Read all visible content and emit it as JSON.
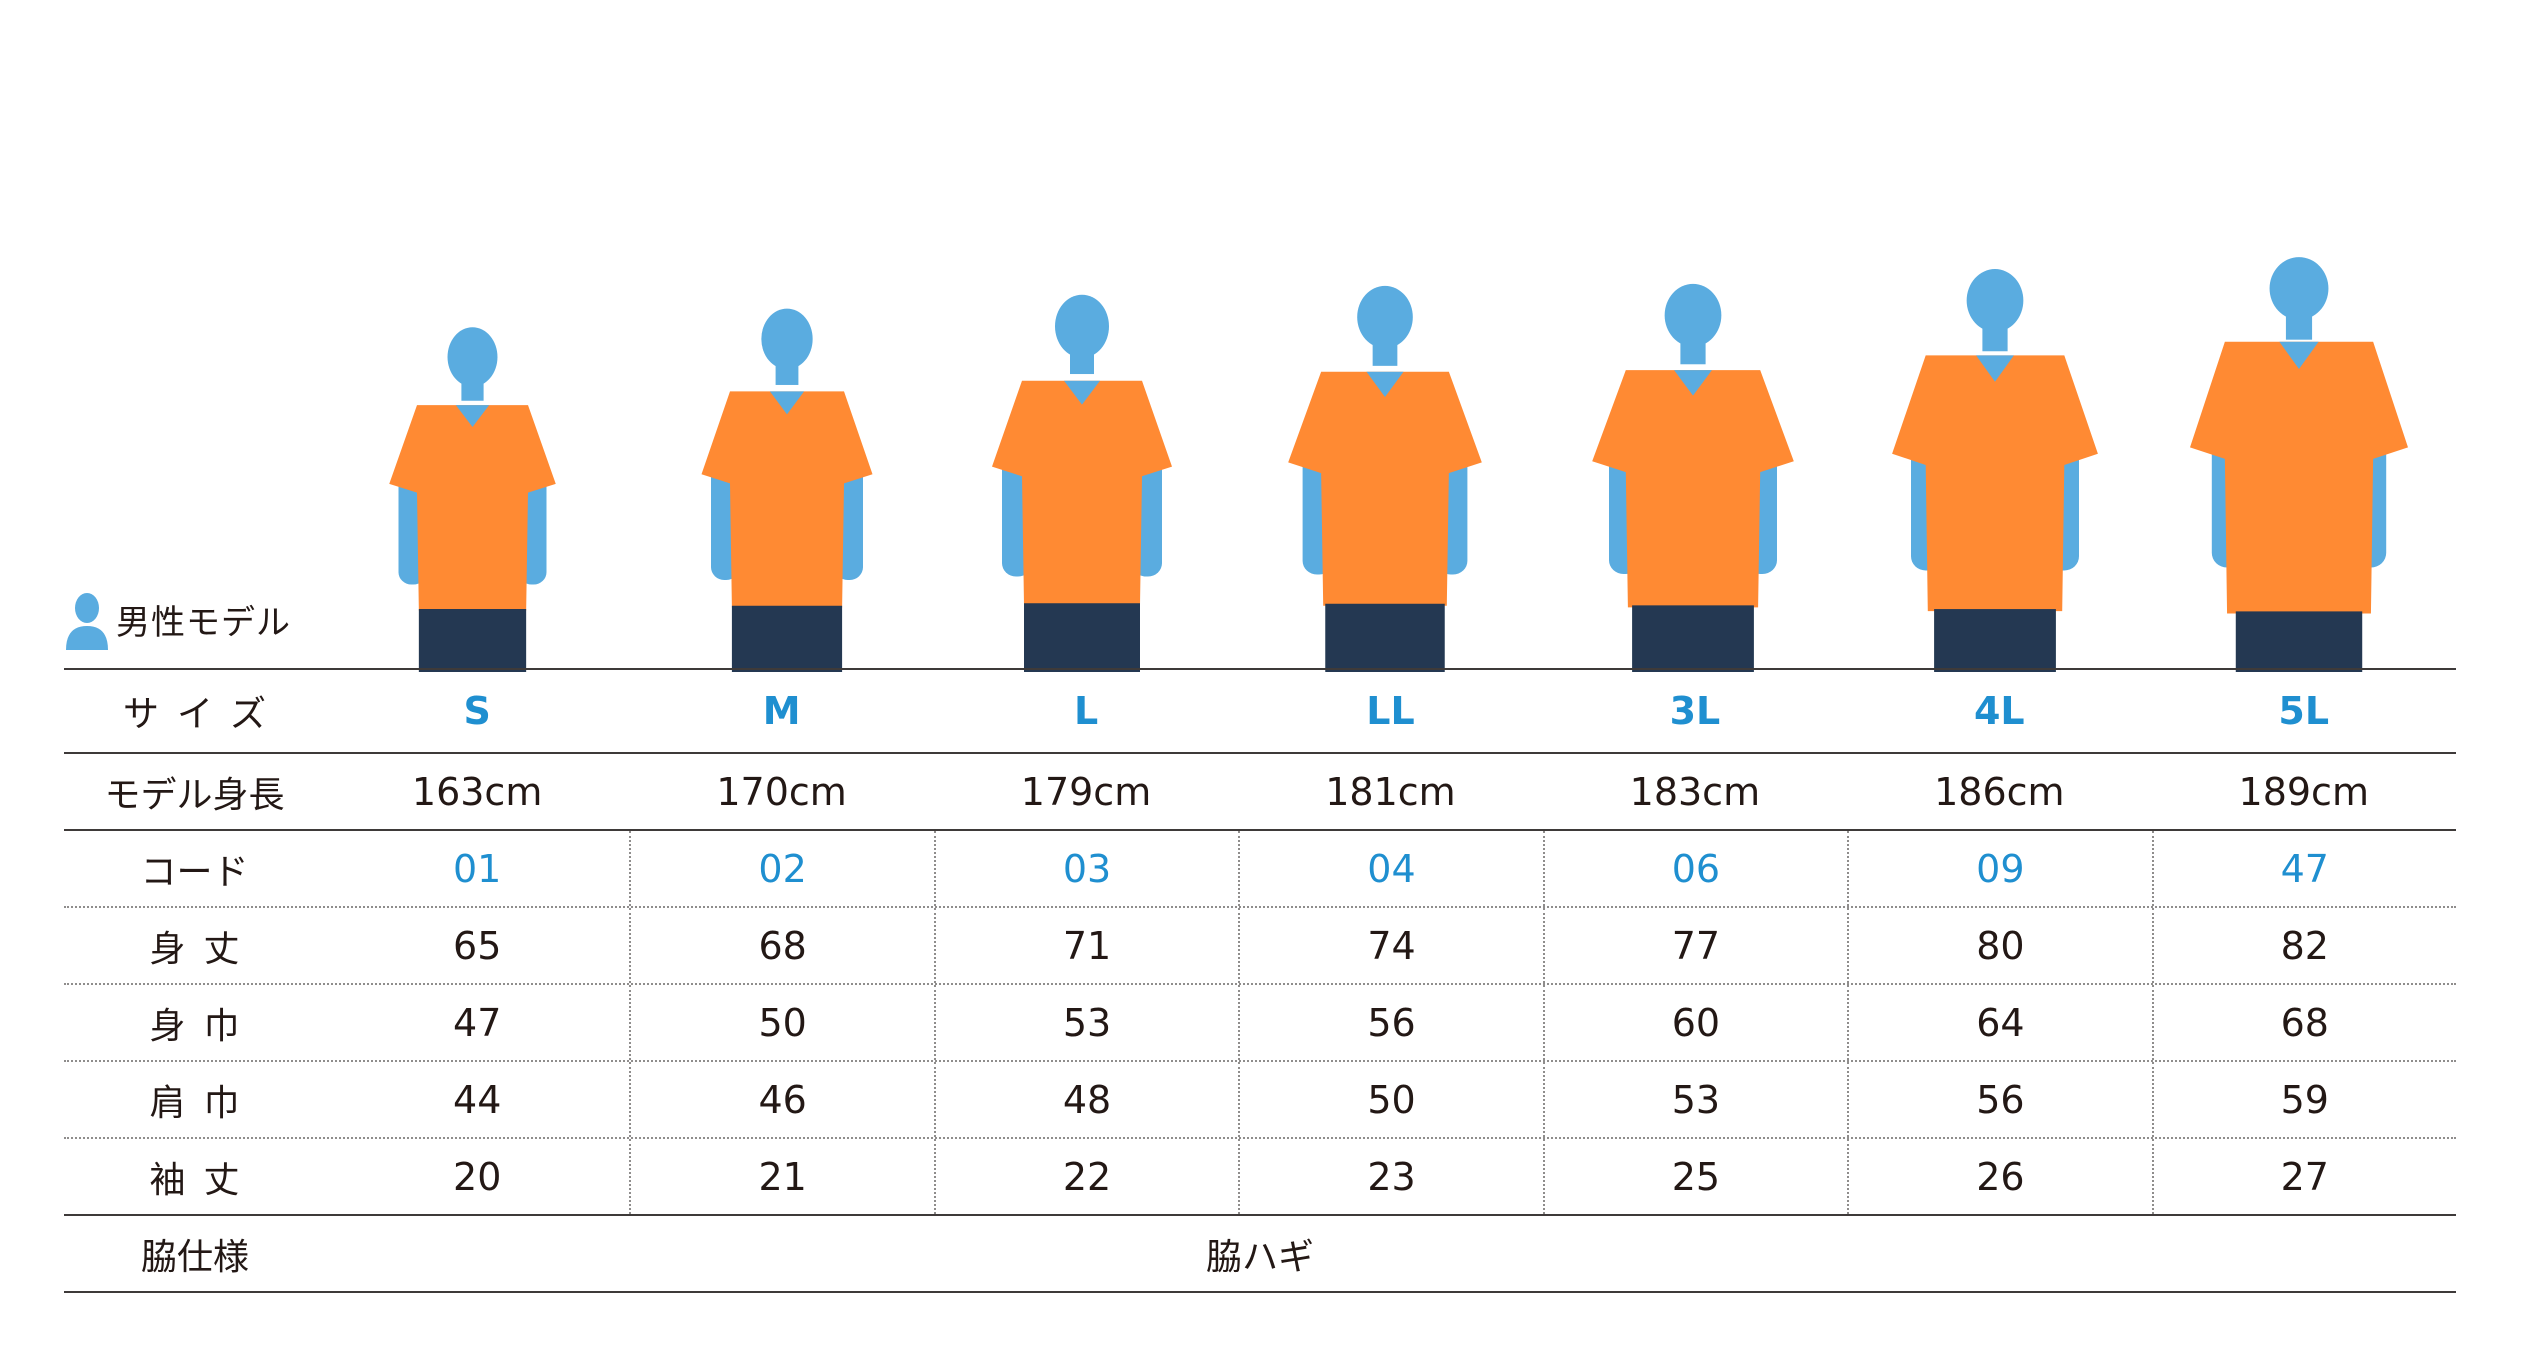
{
  "legend": {
    "icon": "person-icon",
    "label": "男性モデル"
  },
  "colors": {
    "accent": "#1f8fd0",
    "silhouette": "#5aace0",
    "shirt": "#ff8a33",
    "jeans": "#243852"
  },
  "table": {
    "size_label": "サイズ",
    "height_label": "モデル身長",
    "code_label": "コード",
    "length_label": "身丈",
    "width_label": "身巾",
    "shoulder_label": "肩巾",
    "sleeve_label": "袖丈",
    "side_label": "脇仕様",
    "side_value": "脇ハギ",
    "columns": [
      {
        "size": "S",
        "height": "163cm",
        "code": "01",
        "length": "65",
        "width": "47",
        "shoulder": "44",
        "sleeve": "20"
      },
      {
        "size": "M",
        "height": "170cm",
        "code": "02",
        "length": "68",
        "width": "50",
        "shoulder": "46",
        "sleeve": "21"
      },
      {
        "size": "L",
        "height": "179cm",
        "code": "03",
        "length": "71",
        "width": "53",
        "shoulder": "48",
        "sleeve": "22"
      },
      {
        "size": "LL",
        "height": "181cm",
        "code": "04",
        "length": "74",
        "width": "56",
        "shoulder": "50",
        "sleeve": "23"
      },
      {
        "size": "3L",
        "height": "183cm",
        "code": "06",
        "length": "77",
        "width": "60",
        "shoulder": "53",
        "sleeve": "25"
      },
      {
        "size": "4L",
        "height": "186cm",
        "code": "09",
        "length": "80",
        "width": "64",
        "shoulder": "56",
        "sleeve": "26"
      },
      {
        "size": "5L",
        "height": "189cm",
        "code": "47",
        "length": "82",
        "width": "68",
        "shoulder": "59",
        "sleeve": "27"
      }
    ]
  }
}
